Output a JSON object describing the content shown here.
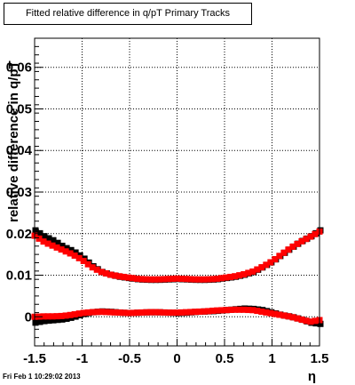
{
  "chart_data": {
    "type": "scatter",
    "title": "Fitted relative difference in q/pT  Primary Tracks",
    "xlabel": "η",
    "ylabel": "relative difference in q/pT",
    "xlim": [
      -1.5,
      1.5
    ],
    "ylim": [
      -0.007,
      0.067
    ],
    "xticks": [
      "-1.5",
      "-1",
      "-0.5",
      "0",
      "0.5",
      "1",
      "1.5"
    ],
    "yticks": [
      "0",
      "0.01",
      "0.02",
      "0.03",
      "0.04",
      "0.05",
      "0.06"
    ],
    "grid": true,
    "series": [
      {
        "color": "#000000",
        "role": "upper",
        "x": [
          -1.5,
          -1.4,
          -1.3,
          -1.2,
          -1.1,
          -1.0,
          -0.9,
          -0.8,
          -0.7,
          -0.6,
          -0.5,
          -0.4,
          -0.3,
          -0.2,
          -0.1,
          0.0,
          0.1,
          0.2,
          0.3,
          0.4,
          0.5,
          0.6,
          0.7,
          0.8,
          0.9,
          1.0,
          1.1,
          1.2,
          1.3,
          1.4,
          1.5
        ],
        "y": [
          0.021,
          0.0195,
          0.0185,
          0.017,
          0.016,
          0.0145,
          0.0125,
          0.011,
          0.0103,
          0.0098,
          0.0095,
          0.0092,
          0.0091,
          0.0091,
          0.0092,
          0.0093,
          0.0092,
          0.0091,
          0.0091,
          0.0092,
          0.0095,
          0.0098,
          0.0103,
          0.011,
          0.0122,
          0.0135,
          0.0152,
          0.0168,
          0.0183,
          0.0195,
          0.021
        ]
      },
      {
        "color": "#ff0000",
        "role": "upper",
        "x": [
          -1.5,
          -1.4,
          -1.3,
          -1.2,
          -1.1,
          -1.0,
          -0.9,
          -0.8,
          -0.7,
          -0.6,
          -0.5,
          -0.4,
          -0.3,
          -0.2,
          -0.1,
          0.0,
          0.1,
          0.2,
          0.3,
          0.4,
          0.5,
          0.6,
          0.7,
          0.8,
          0.9,
          1.0,
          1.1,
          1.2,
          1.3,
          1.4,
          1.5
        ],
        "y": [
          0.0195,
          0.018,
          0.017,
          0.016,
          0.015,
          0.0137,
          0.012,
          0.0108,
          0.0101,
          0.0097,
          0.0094,
          0.0091,
          0.009,
          0.009,
          0.0091,
          0.0092,
          0.0091,
          0.009,
          0.009,
          0.0091,
          0.0094,
          0.0097,
          0.0102,
          0.0109,
          0.012,
          0.0133,
          0.015,
          0.0166,
          0.018,
          0.0192,
          0.0205
        ]
      },
      {
        "color": "#000000",
        "role": "lower",
        "x": [
          -1.5,
          -1.4,
          -1.3,
          -1.2,
          -1.1,
          -1.0,
          -0.9,
          -0.8,
          -0.7,
          -0.6,
          -0.5,
          -0.4,
          -0.3,
          -0.2,
          -0.1,
          0.0,
          0.1,
          0.2,
          0.3,
          0.4,
          0.5,
          0.6,
          0.7,
          0.8,
          0.9,
          1.0,
          1.1,
          1.2,
          1.3,
          1.4,
          1.5
        ],
        "y": [
          -0.0012,
          -0.0008,
          -0.0006,
          -0.0004,
          0.0001,
          0.0008,
          0.0013,
          0.0015,
          0.0014,
          0.0012,
          0.0011,
          0.0012,
          0.0013,
          0.0013,
          0.0012,
          0.0011,
          0.0012,
          0.0014,
          0.0015,
          0.0016,
          0.0018,
          0.002,
          0.0022,
          0.0021,
          0.0018,
          0.0012,
          0.0006,
          0.0002,
          -0.0004,
          -0.0012,
          -0.0015
        ]
      },
      {
        "color": "#ff0000",
        "role": "lower",
        "x": [
          -1.5,
          -1.4,
          -1.3,
          -1.2,
          -1.1,
          -1.0,
          -0.9,
          -0.8,
          -0.7,
          -0.6,
          -0.5,
          -0.4,
          -0.3,
          -0.2,
          -0.1,
          0.0,
          0.1,
          0.2,
          0.3,
          0.4,
          0.5,
          0.6,
          0.7,
          0.8,
          0.9,
          1.0,
          1.1,
          1.2,
          1.3,
          1.4,
          1.5
        ],
        "y": [
          0.0,
          0.0001,
          0.0001,
          0.0002,
          0.0005,
          0.0009,
          0.0011,
          0.0012,
          0.0011,
          0.001,
          0.0009,
          0.001,
          0.0011,
          0.0011,
          0.001,
          0.001,
          0.0011,
          0.0012,
          0.0013,
          0.0015,
          0.0016,
          0.0017,
          0.0017,
          0.0016,
          0.0012,
          0.0008,
          0.0004,
          0.0,
          -0.0006,
          -0.0012,
          -0.0008
        ]
      }
    ]
  },
  "footer": {
    "timestamp": "Fri Feb  1 10:29:02 2013"
  }
}
